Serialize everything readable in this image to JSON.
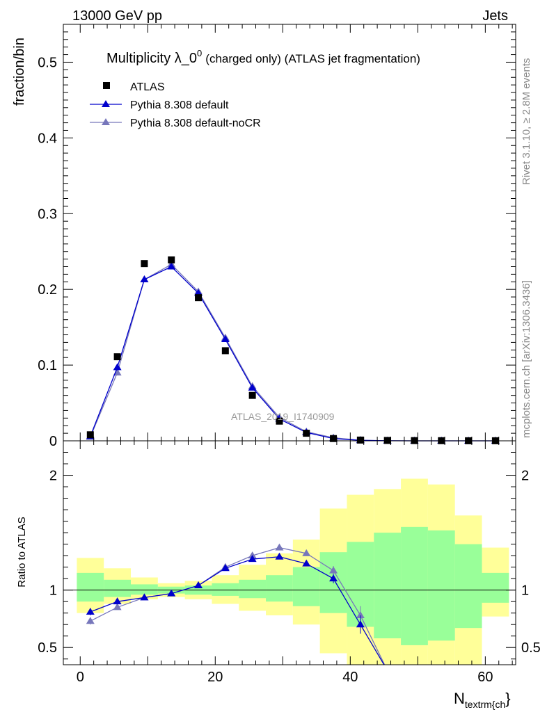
{
  "header": {
    "left": "13000 GeV pp",
    "right": "Jets"
  },
  "side_labels": {
    "rivet": "Rivet 3.1.10, ≥ 2.8M events",
    "mcplots": "mcplots.cern.ch [arXiv:1306.3436]"
  },
  "chart_data": {
    "type": "scatter",
    "title_main": "Multiplicity λ_0",
    "title_sup": "0",
    "title_tail": "(charged only) (ATLAS jet fragmentation)",
    "watermark": "ATLAS_2019_I1740909",
    "ylabel": "fraction/bin",
    "ratio_ylabel": "Ratio to ATLAS",
    "xlabel_main": "N",
    "xlabel_sub": "textrm{ch",
    "xlabel_close": "}",
    "xlim": [
      -2.5,
      64.5
    ],
    "ylim": [
      0,
      0.55
    ],
    "ratio_ylim": [
      0.35,
      2.3
    ],
    "x_ticks": [
      0,
      20,
      40,
      60
    ],
    "y_ticks": [
      0,
      0.1,
      0.2,
      0.3,
      0.4,
      0.5
    ],
    "y_tick_labels": [
      "0",
      "0.1",
      "0.2",
      "0.3",
      "0.4",
      "0.5"
    ],
    "ratio_ticks": [
      0.5,
      1,
      2
    ],
    "ratio_tick_labels": [
      "0.5",
      "1",
      "2"
    ],
    "legend": [
      "ATLAS",
      "Pythia 8.308 default",
      "Pythia 8.308 default-noCR"
    ],
    "colors": {
      "data": "#000000",
      "default": "#0000cc",
      "nocr": "#7777bb",
      "band_inner": "#99ff99",
      "band_outer": "#ffff99"
    },
    "bin_edges": [
      -0.5,
      3.5,
      7.5,
      11.5,
      15.5,
      19.5,
      23.5,
      27.5,
      31.5,
      35.5,
      39.5,
      43.5,
      47.5,
      51.5,
      55.5,
      59.5,
      63.5
    ],
    "x": [
      1.5,
      5.5,
      9.5,
      13.5,
      17.5,
      21.5,
      25.5,
      29.5,
      33.5,
      37.5,
      41.5,
      45.5,
      49.5,
      53.5,
      57.5,
      61.5
    ],
    "atlas": [
      0.008,
      0.111,
      0.234,
      0.239,
      0.189,
      0.119,
      0.06,
      0.026,
      0.01,
      0.003,
      0.001,
      0.0005,
      0.0003,
      0.0002,
      0.0001,
      0.0001
    ],
    "pythia_default": [
      0.006,
      0.097,
      0.213,
      0.23,
      0.195,
      0.134,
      0.07,
      0.029,
      0.011,
      0.003,
      0.0007,
      0.0001,
      3e-05,
      1e-05,
      5e-06,
      2e-06
    ],
    "pythia_nocr": [
      0.005,
      0.09,
      0.213,
      0.233,
      0.197,
      0.136,
      0.072,
      0.031,
      0.012,
      0.004,
      0.0008,
      0.0001,
      3e-05,
      1e-05,
      5e-06,
      2e-06
    ],
    "ratio_default": [
      0.81,
      0.9,
      0.935,
      0.97,
      1.04,
      1.19,
      1.27,
      1.29,
      1.23,
      1.1,
      0.7,
      0.3
    ],
    "ratio_default_err": [
      0.03,
      0.01,
      0.005,
      0.005,
      0.005,
      0.008,
      0.01,
      0.015,
      0.02,
      0.04,
      0.08,
      0
    ],
    "ratio_nocr": [
      0.73,
      0.85,
      0.935,
      0.97,
      1.04,
      1.2,
      1.3,
      1.37,
      1.32,
      1.17,
      0.78,
      0.3
    ],
    "ratio_nocr_err": [
      0.03,
      0.01,
      0.005,
      0.005,
      0.005,
      0.008,
      0.01,
      0.015,
      0.02,
      0.04,
      0.08,
      0
    ],
    "band_inner_lo": [
      0.9,
      0.94,
      0.96,
      0.97,
      0.96,
      0.95,
      0.93,
      0.9,
      0.86,
      0.8,
      0.68,
      0.58,
      0.52,
      0.56,
      0.67,
      0.89
    ],
    "band_inner_hi": [
      1.15,
      1.09,
      1.05,
      1.03,
      1.04,
      1.06,
      1.09,
      1.13,
      1.2,
      1.33,
      1.42,
      1.5,
      1.55,
      1.52,
      1.4,
      1.15
    ],
    "band_outer_lo": [
      0.8,
      0.88,
      0.92,
      0.94,
      0.92,
      0.88,
      0.82,
      0.78,
      0.7,
      0.45,
      0.35,
      0.35,
      0.35,
      0.35,
      0.35,
      0.77
    ],
    "band_outer_hi": [
      1.28,
      1.19,
      1.11,
      1.06,
      1.08,
      1.13,
      1.22,
      1.32,
      1.44,
      1.71,
      1.83,
      1.88,
      1.97,
      1.92,
      1.65,
      1.37
    ]
  }
}
